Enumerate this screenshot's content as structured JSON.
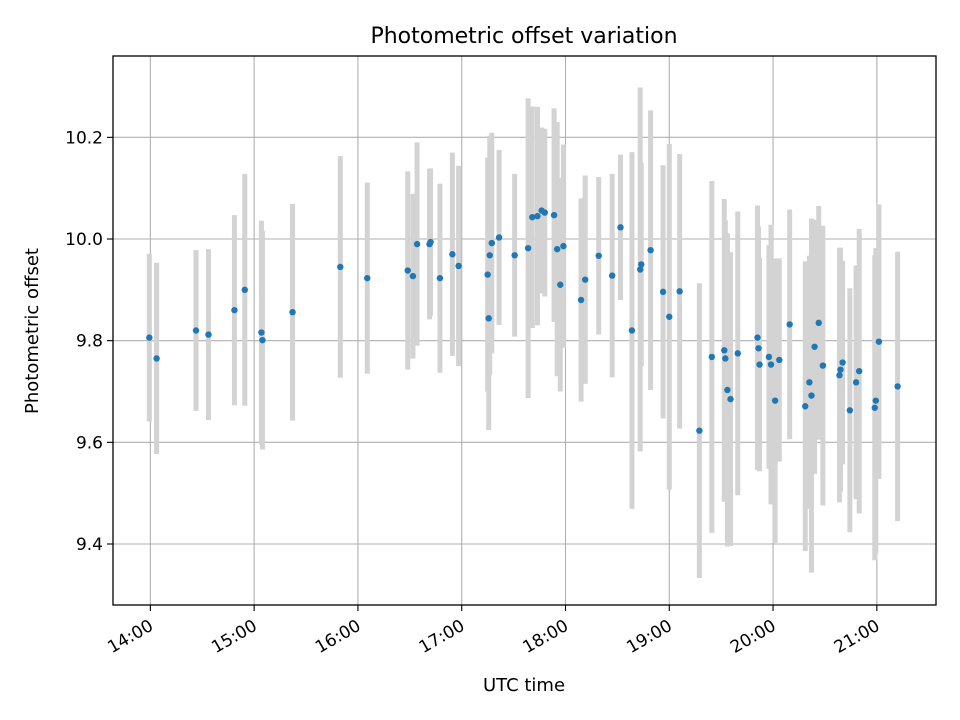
{
  "chart_data": {
    "type": "scatter",
    "title": "Photometric offset variation",
    "xlabel": "UTC time",
    "ylabel": "Photometric offset",
    "x_tick_labels": [
      "14:00",
      "15:00",
      "16:00",
      "17:00",
      "18:00",
      "19:00",
      "20:00",
      "21:00"
    ],
    "y_tick_labels": [
      "9.4",
      "9.6",
      "9.8",
      "10.0",
      "10.2"
    ],
    "x_ticks_hours": [
      14,
      15,
      16,
      17,
      18,
      19,
      20,
      21
    ],
    "y_ticks": [
      9.4,
      9.6,
      9.8,
      10.0,
      10.2
    ],
    "xlim_hours": [
      13.64,
      21.57
    ],
    "ylim": [
      9.28,
      10.36
    ],
    "grid": true,
    "point_color": "#1f77b4",
    "errorbar_color": "#d3d3d3",
    "series": [
      {
        "x_hours": [
          13.99,
          14.06,
          14.44,
          14.56,
          14.81,
          14.91,
          15.07,
          15.08,
          15.37,
          15.83,
          16.09,
          16.48,
          16.53,
          16.57,
          16.69,
          16.7,
          16.79,
          16.91,
          16.97,
          17.25,
          17.26,
          17.27,
          17.29,
          17.36,
          17.51,
          17.64,
          17.68,
          17.73,
          17.77,
          17.8,
          17.89,
          17.92,
          17.95,
          17.98,
          18.15,
          18.19,
          18.32,
          18.45,
          18.53,
          18.64,
          18.72,
          18.73,
          18.82,
          18.94,
          19.0,
          19.1,
          19.29,
          19.41,
          19.53,
          19.54,
          19.56,
          19.59,
          19.66,
          19.85,
          19.86,
          19.87,
          19.96,
          19.98,
          20.02,
          20.06,
          20.16,
          20.31,
          20.35,
          20.37,
          20.4,
          20.44,
          20.48,
          20.64,
          20.65,
          20.67,
          20.74,
          20.8,
          20.83,
          20.98,
          20.99,
          21.02,
          21.2
        ],
        "y": [
          9.806,
          9.765,
          9.82,
          9.812,
          9.86,
          9.9,
          9.816,
          9.801,
          9.856,
          9.945,
          9.923,
          9.938,
          9.927,
          9.99,
          9.99,
          9.994,
          9.923,
          9.97,
          9.947,
          9.93,
          9.844,
          9.968,
          9.992,
          10.003,
          9.968,
          9.982,
          10.043,
          10.045,
          10.056,
          10.052,
          10.047,
          9.98,
          9.91,
          9.986,
          9.88,
          9.92,
          9.967,
          9.928,
          10.023,
          9.82,
          9.94,
          9.95,
          9.978,
          9.896,
          9.847,
          9.897,
          9.623,
          9.768,
          9.781,
          9.765,
          9.703,
          9.685,
          9.775,
          9.806,
          9.785,
          9.753,
          9.768,
          9.753,
          9.682,
          9.762,
          9.832,
          9.671,
          9.718,
          9.692,
          9.788,
          9.835,
          9.751,
          9.732,
          9.743,
          9.757,
          9.663,
          9.718,
          9.74,
          9.668,
          9.682,
          9.798,
          9.71
        ],
        "yerr": [
          0.165,
          0.188,
          0.158,
          0.168,
          0.187,
          0.228,
          0.22,
          0.215,
          0.213,
          0.218,
          0.188,
          0.195,
          0.162,
          0.2,
          0.148,
          0.145,
          0.186,
          0.2,
          0.197,
          0.23,
          0.22,
          0.235,
          0.217,
          0.172,
          0.16,
          0.295,
          0.218,
          0.215,
          0.163,
          0.165,
          0.21,
          0.25,
          0.21,
          0.2,
          0.2,
          0.205,
          0.155,
          0.2,
          0.143,
          0.351,
          0.358,
          0.2,
          0.275,
          0.249,
          0.34,
          0.27,
          0.29,
          0.346,
          0.298,
          0.272,
          0.308,
          0.289,
          0.279,
          0.26,
          0.24,
          0.21,
          0.22,
          0.275,
          0.28,
          0.2,
          0.226,
          0.285,
          0.249,
          0.348,
          0.25,
          0.23,
          0.275,
          0.25,
          0.24,
          0.2,
          0.24,
          0.23,
          0.28,
          0.3,
          0.3,
          0.27,
          0.265
        ]
      }
    ]
  }
}
